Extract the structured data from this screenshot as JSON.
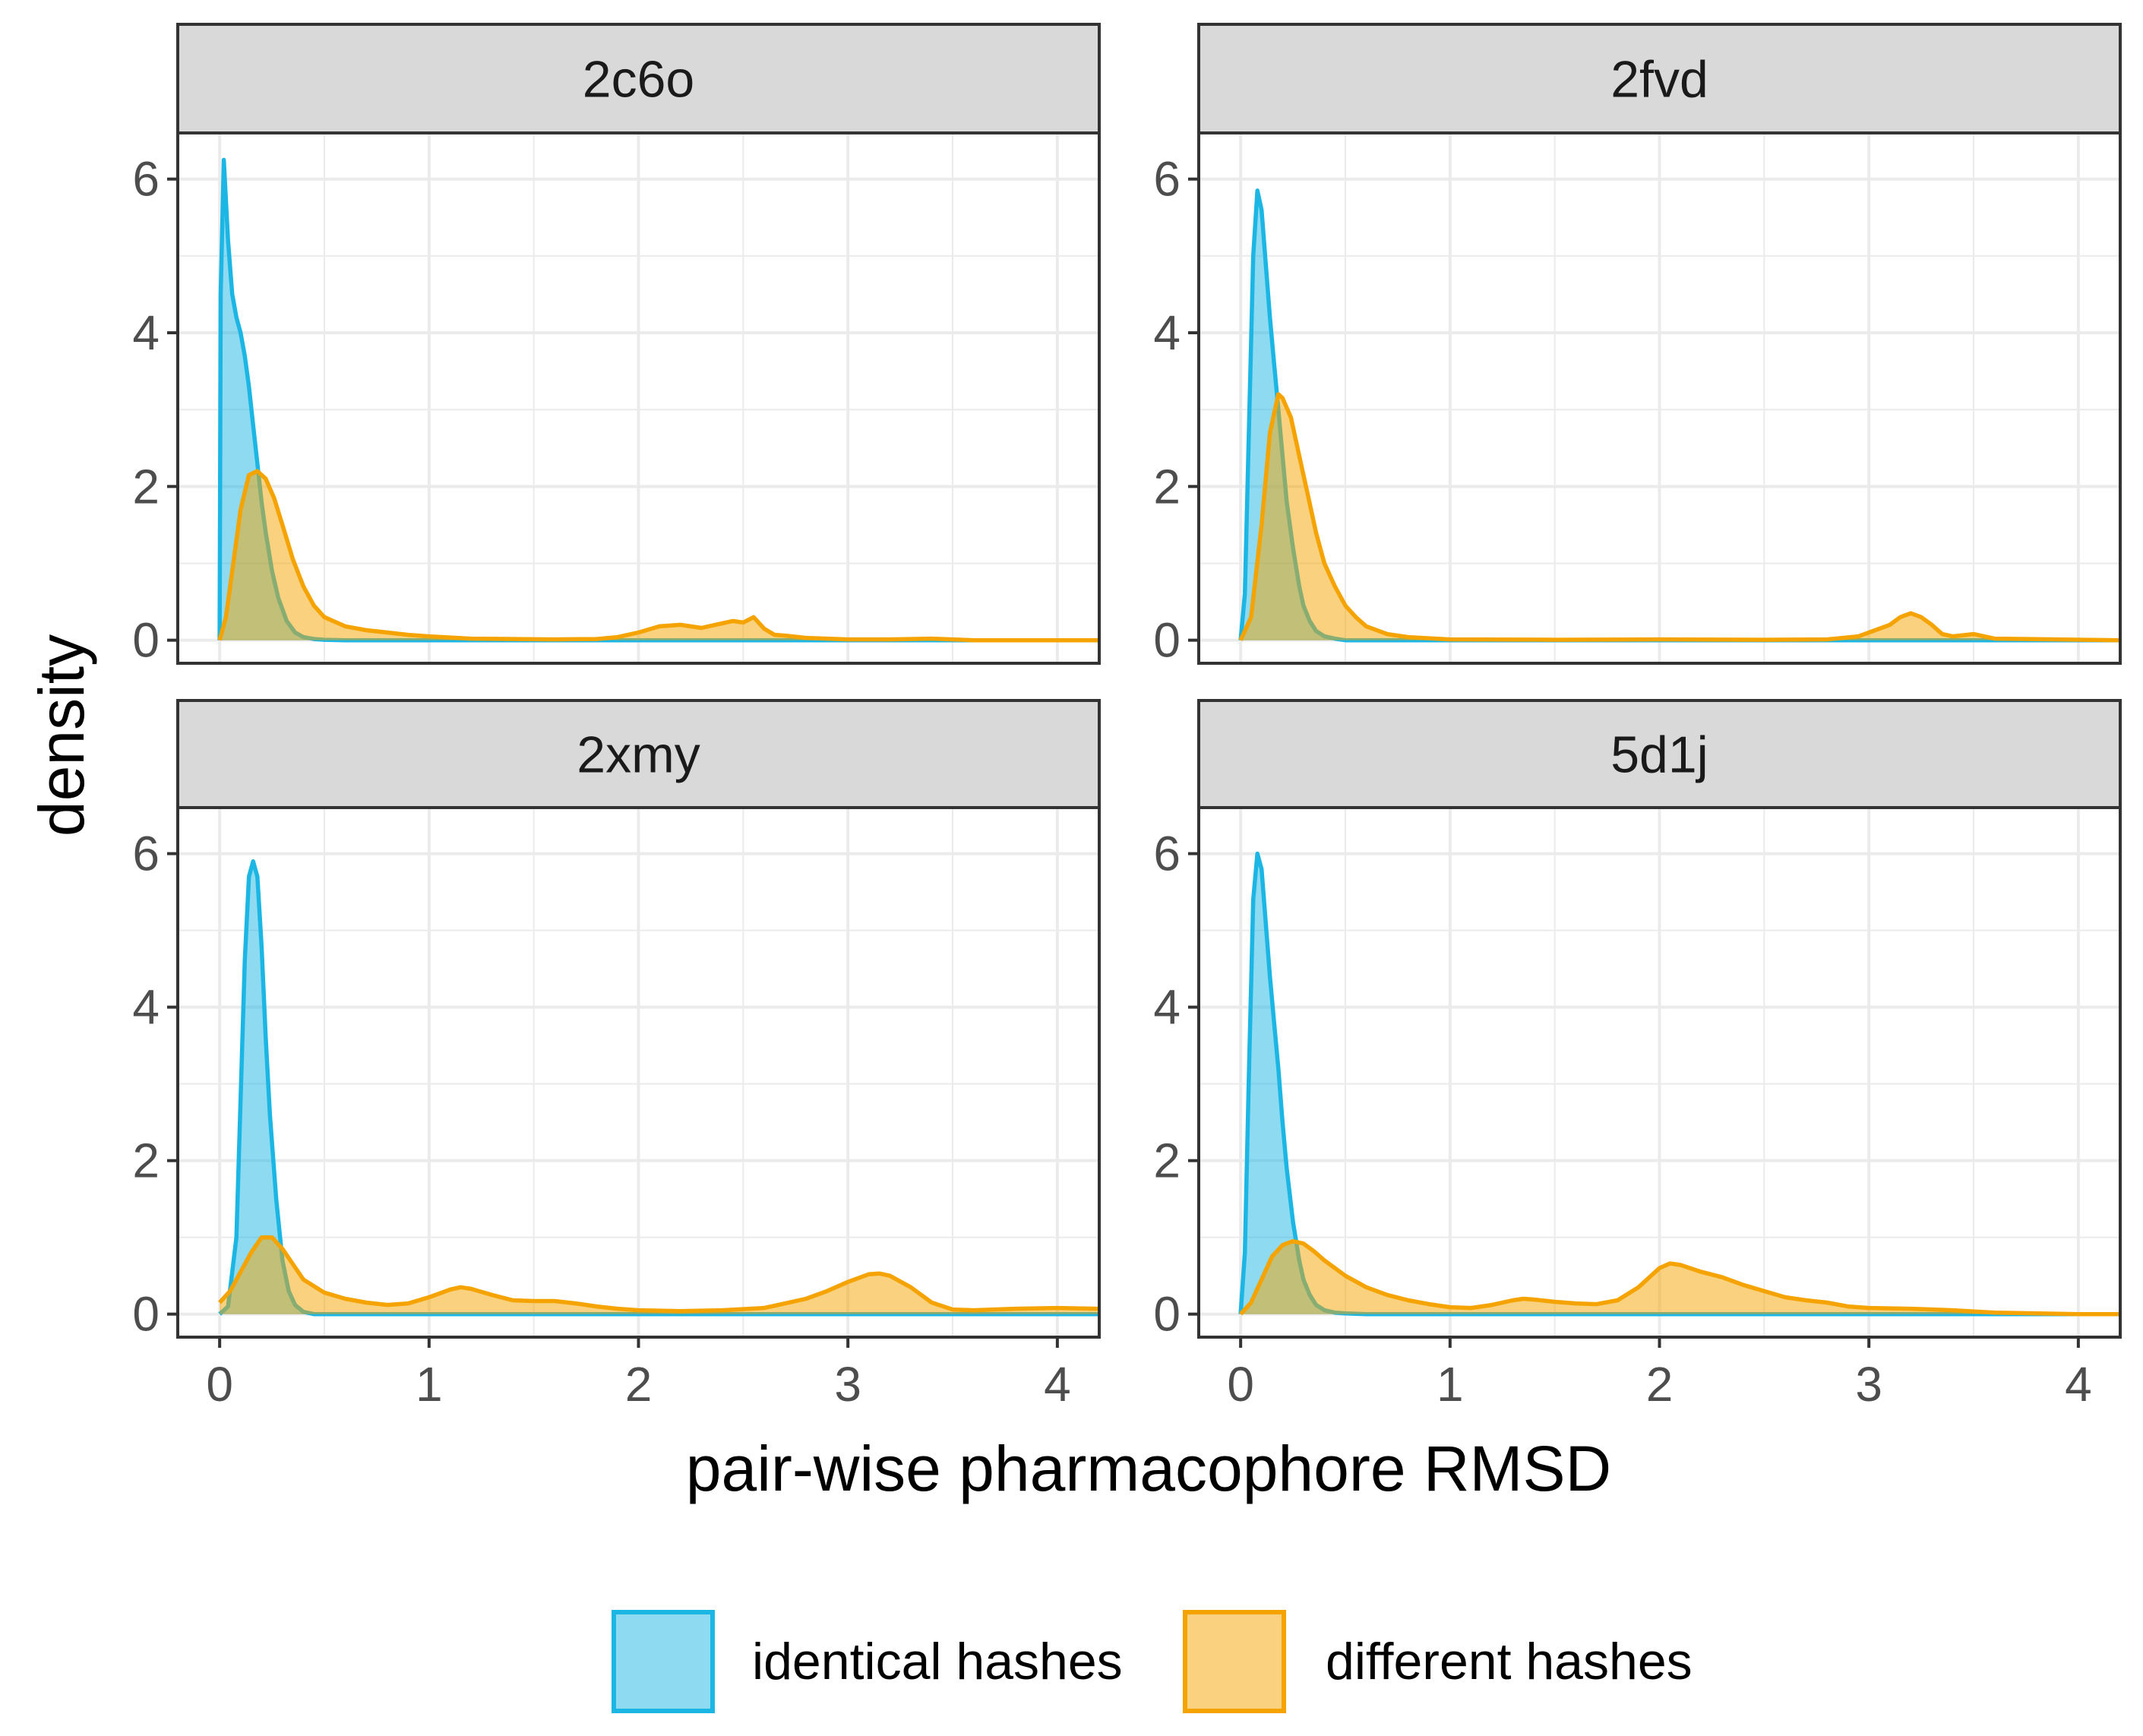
{
  "colors": {
    "identical": "#1BB6E4",
    "different": "#F5A300",
    "strip_bg": "#D9D9D9",
    "grid": "#EBEBEB",
    "border": "#333333"
  },
  "chart_data": {
    "type": "density",
    "xlabel": "pair-wise pharmacophore RMSD",
    "ylabel": "density",
    "xlim": [
      -0.2,
      4.2
    ],
    "ylim": [
      -0.3,
      6.6
    ],
    "x_ticks": [
      0,
      1,
      2,
      3,
      4
    ],
    "y_ticks": [
      0,
      2,
      4,
      6
    ],
    "legend": {
      "position": "bottom",
      "entries": [
        {
          "key": "identical",
          "label": "identical hashes"
        },
        {
          "key": "different",
          "label": "different hashes"
        }
      ]
    },
    "panels": [
      {
        "title": "2c6o",
        "series": [
          {
            "key": "identical",
            "name": "identical hashes",
            "x": [
              0,
              0.005,
              0.02,
              0.04,
              0.06,
              0.08,
              0.1,
              0.12,
              0.14,
              0.16,
              0.18,
              0.2,
              0.22,
              0.25,
              0.28,
              0.32,
              0.36,
              0.4,
              0.45,
              0.5,
              0.6,
              4.2
            ],
            "y": [
              0,
              4.5,
              6.25,
              5.2,
              4.5,
              4.2,
              4.0,
              3.7,
              3.3,
              2.8,
              2.3,
              1.8,
              1.4,
              0.9,
              0.55,
              0.25,
              0.1,
              0.04,
              0.015,
              0.005,
              0,
              0
            ]
          },
          {
            "key": "different",
            "name": "different hashes",
            "x": [
              0,
              0.03,
              0.06,
              0.1,
              0.14,
              0.18,
              0.22,
              0.26,
              0.3,
              0.35,
              0.4,
              0.45,
              0.5,
              0.6,
              0.7,
              0.8,
              0.9,
              1.0,
              1.2,
              1.4,
              1.6,
              1.8,
              1.9,
              2.0,
              2.1,
              2.2,
              2.3,
              2.4,
              2.45,
              2.5,
              2.55,
              2.6,
              2.65,
              2.7,
              2.8,
              3.0,
              3.2,
              3.4,
              3.6,
              4.2
            ],
            "y": [
              0,
              0.3,
              0.9,
              1.7,
              2.15,
              2.2,
              2.1,
              1.85,
              1.5,
              1.05,
              0.7,
              0.45,
              0.3,
              0.18,
              0.13,
              0.1,
              0.07,
              0.05,
              0.02,
              0.015,
              0.01,
              0.015,
              0.04,
              0.1,
              0.18,
              0.2,
              0.16,
              0.22,
              0.25,
              0.23,
              0.3,
              0.15,
              0.07,
              0.06,
              0.03,
              0.01,
              0.01,
              0.02,
              0,
              0
            ]
          }
        ]
      },
      {
        "title": "2fvd",
        "series": [
          {
            "key": "identical",
            "name": "identical hashes",
            "x": [
              0,
              0.02,
              0.04,
              0.06,
              0.08,
              0.1,
              0.12,
              0.14,
              0.16,
              0.18,
              0.2,
              0.22,
              0.25,
              0.28,
              0.3,
              0.33,
              0.36,
              0.4,
              0.45,
              0.5,
              4.2
            ],
            "y": [
              0,
              0.6,
              2.8,
              5.0,
              5.85,
              5.6,
              4.9,
              4.2,
              3.6,
              3.0,
              2.4,
              1.8,
              1.2,
              0.7,
              0.45,
              0.25,
              0.12,
              0.05,
              0.02,
              0,
              0
            ]
          },
          {
            "key": "different",
            "name": "different hashes",
            "x": [
              0,
              0.05,
              0.1,
              0.14,
              0.18,
              0.2,
              0.24,
              0.28,
              0.32,
              0.36,
              0.4,
              0.45,
              0.5,
              0.55,
              0.6,
              0.7,
              0.8,
              1.0,
              1.5,
              2.0,
              2.5,
              2.8,
              2.95,
              3.05,
              3.1,
              3.15,
              3.2,
              3.25,
              3.3,
              3.35,
              3.4,
              3.5,
              3.6,
              4.2
            ],
            "y": [
              0,
              0.3,
              1.5,
              2.7,
              3.2,
              3.15,
              2.9,
              2.4,
              1.9,
              1.4,
              1.0,
              0.7,
              0.45,
              0.3,
              0.18,
              0.08,
              0.04,
              0.01,
              0.005,
              0.01,
              0.005,
              0.01,
              0.05,
              0.15,
              0.2,
              0.3,
              0.35,
              0.3,
              0.2,
              0.08,
              0.05,
              0.08,
              0.02,
              0
            ]
          }
        ]
      },
      {
        "title": "2xmy",
        "series": [
          {
            "key": "identical",
            "name": "identical hashes",
            "x": [
              0,
              0.04,
              0.08,
              0.1,
              0.12,
              0.14,
              0.16,
              0.18,
              0.2,
              0.22,
              0.24,
              0.27,
              0.3,
              0.33,
              0.36,
              0.4,
              0.45,
              4.2
            ],
            "y": [
              0,
              0.1,
              1.0,
              2.8,
              4.6,
              5.7,
              5.9,
              5.7,
              4.8,
              3.6,
              2.6,
              1.5,
              0.7,
              0.3,
              0.12,
              0.03,
              0,
              0
            ]
          },
          {
            "key": "different",
            "name": "different hashes",
            "x": [
              0,
              0.05,
              0.1,
              0.15,
              0.2,
              0.25,
              0.3,
              0.35,
              0.4,
              0.5,
              0.6,
              0.7,
              0.8,
              0.9,
              1.0,
              1.1,
              1.15,
              1.2,
              1.3,
              1.4,
              1.5,
              1.6,
              1.7,
              1.8,
              1.9,
              2.0,
              2.2,
              2.4,
              2.6,
              2.8,
              2.9,
              3.0,
              3.1,
              3.15,
              3.2,
              3.3,
              3.4,
              3.5,
              3.6,
              3.8,
              4.0,
              4.2
            ],
            "y": [
              0.15,
              0.3,
              0.55,
              0.8,
              1.0,
              1.0,
              0.85,
              0.65,
              0.45,
              0.28,
              0.2,
              0.15,
              0.12,
              0.14,
              0.22,
              0.32,
              0.35,
              0.33,
              0.25,
              0.18,
              0.17,
              0.17,
              0.14,
              0.1,
              0.07,
              0.05,
              0.04,
              0.05,
              0.08,
              0.2,
              0.3,
              0.42,
              0.52,
              0.53,
              0.5,
              0.35,
              0.15,
              0.06,
              0.05,
              0.07,
              0.08,
              0.07
            ]
          }
        ]
      },
      {
        "title": "5d1j",
        "series": [
          {
            "key": "identical",
            "name": "identical hashes",
            "x": [
              0,
              0.02,
              0.04,
              0.06,
              0.08,
              0.1,
              0.12,
              0.14,
              0.16,
              0.18,
              0.2,
              0.22,
              0.25,
              0.28,
              0.3,
              0.33,
              0.36,
              0.4,
              0.45,
              0.5,
              0.6,
              4.2
            ],
            "y": [
              0,
              0.8,
              3.2,
              5.4,
              6.0,
              5.8,
              5.1,
              4.4,
              3.8,
              3.2,
              2.5,
              1.9,
              1.2,
              0.7,
              0.45,
              0.25,
              0.12,
              0.05,
              0.02,
              0.01,
              0,
              0
            ]
          },
          {
            "key": "different",
            "name": "different hashes",
            "x": [
              0,
              0.05,
              0.1,
              0.15,
              0.2,
              0.25,
              0.3,
              0.35,
              0.4,
              0.5,
              0.6,
              0.7,
              0.8,
              0.9,
              1.0,
              1.1,
              1.2,
              1.3,
              1.35,
              1.4,
              1.5,
              1.6,
              1.7,
              1.8,
              1.9,
              2.0,
              2.05,
              2.1,
              2.2,
              2.3,
              2.4,
              2.5,
              2.6,
              2.7,
              2.8,
              2.9,
              3.0,
              3.2,
              3.4,
              3.6,
              3.8,
              4.0,
              4.2
            ],
            "y": [
              0,
              0.15,
              0.45,
              0.75,
              0.9,
              0.95,
              0.92,
              0.82,
              0.7,
              0.5,
              0.35,
              0.25,
              0.18,
              0.13,
              0.09,
              0.08,
              0.12,
              0.18,
              0.2,
              0.19,
              0.16,
              0.14,
              0.13,
              0.18,
              0.35,
              0.6,
              0.66,
              0.64,
              0.55,
              0.48,
              0.38,
              0.3,
              0.22,
              0.18,
              0.15,
              0.1,
              0.08,
              0.07,
              0.05,
              0.02,
              0.01,
              0,
              0
            ]
          }
        ]
      }
    ]
  }
}
